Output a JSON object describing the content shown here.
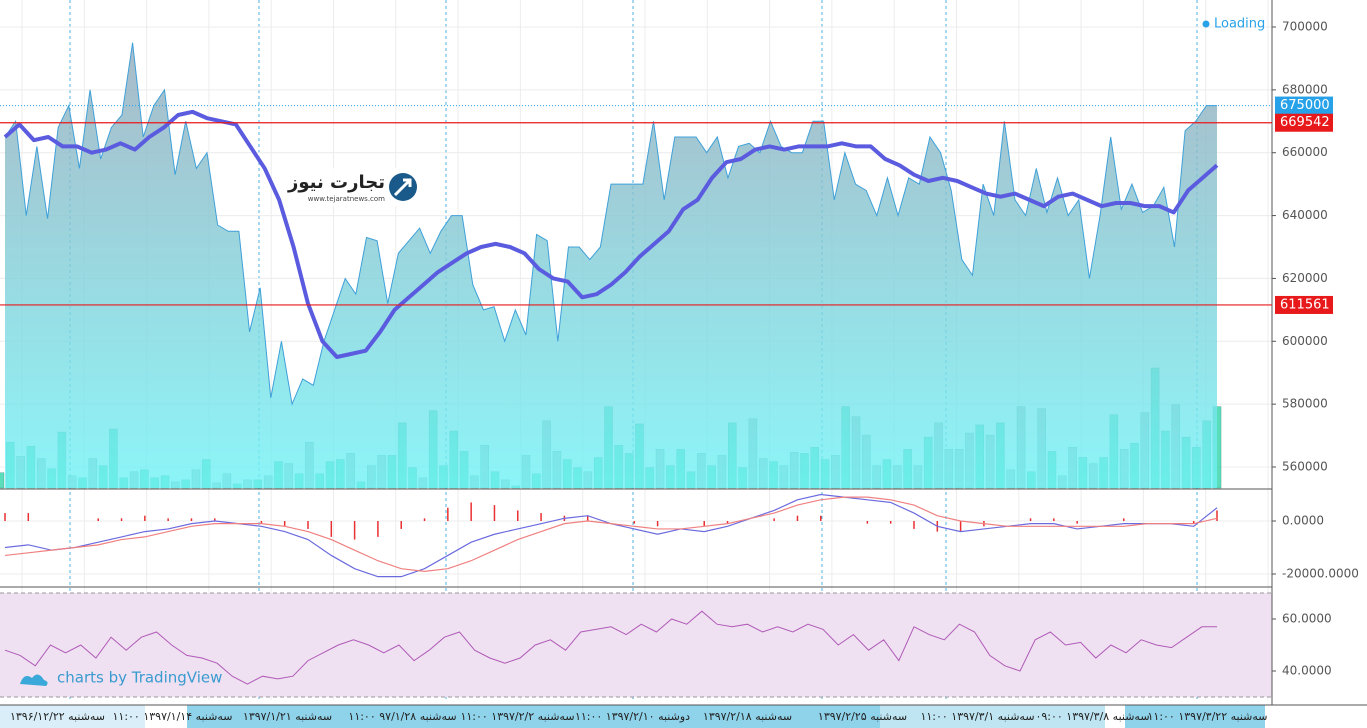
{
  "chart_data": [
    {
      "type": "area",
      "values": [
        665000,
        670000,
        640000,
        662000,
        639000,
        668000,
        675000,
        655000,
        680000,
        658000,
        668000,
        672000,
        695000,
        665000,
        675000,
        680000,
        653000,
        670000,
        655000,
        660000,
        637000,
        635000,
        635000,
        603000,
        617000,
        582000,
        600000,
        580000,
        588000,
        586000,
        600000,
        610000,
        620000,
        615000,
        633000,
        632000,
        612000,
        628000,
        632000,
        636000,
        628000,
        635000,
        640000,
        640000,
        618000,
        610000,
        611000,
        600000,
        610000,
        602000,
        634000,
        632000,
        600000,
        630000,
        630000,
        626000,
        630000,
        650000,
        650000,
        650000,
        650000,
        670000,
        645000,
        665000,
        665000,
        665000,
        660000,
        665000,
        652000,
        662000,
        663000,
        660000,
        670000,
        662000,
        660000,
        660000,
        670000,
        670000,
        645000,
        660000,
        650000,
        648000,
        640000,
        652000,
        640000,
        652000,
        650000,
        665000,
        660000,
        648000,
        626000,
        621000,
        650000,
        640000,
        670000,
        645000,
        640000,
        655000,
        641000,
        652000,
        640000,
        645000,
        620000,
        640000,
        665000,
        642000,
        650000,
        641000,
        643000,
        649000,
        630000,
        667000,
        670000,
        675000,
        675000
      ],
      "color": "#3fa0d8",
      "ma": {
        "color": "#5b5be0",
        "values": [
          665000,
          669000,
          664000,
          665000,
          662000,
          662000,
          660000,
          661000,
          663000,
          661000,
          665000,
          668000,
          672000,
          673000,
          671000,
          670000,
          669000,
          662000,
          655000,
          645000,
          630000,
          612000,
          600000,
          595000,
          596000,
          597000,
          603000,
          610000,
          614000,
          618000,
          622000,
          625000,
          628000,
          630000,
          631000,
          630000,
          628000,
          623000,
          620000,
          619000,
          614000,
          615000,
          618000,
          622000,
          627000,
          631000,
          635000,
          642000,
          645000,
          652000,
          657000,
          658000,
          661000,
          662000,
          661000,
          662000,
          662000,
          662000,
          663000,
          662000,
          662000,
          658000,
          656000,
          653000,
          651000,
          652000,
          651000,
          649000,
          647000,
          646000,
          647000,
          645000,
          643000,
          646000,
          647000,
          645000,
          643000,
          644000,
          644000,
          643000,
          643000,
          641000,
          648000,
          652000,
          656000
        ]
      },
      "volume": {
        "up_color": "#3ed8ae",
        "down_color": "#a3b9b9",
        "values": [
          15,
          45,
          31,
          41,
          29,
          19,
          55,
          12,
          10,
          29,
          22,
          58,
          10,
          16,
          18,
          10,
          12,
          6,
          8,
          18,
          28,
          5,
          14,
          4,
          8,
          8,
          12,
          26,
          24,
          14,
          45,
          14,
          26,
          28,
          34,
          6,
          22,
          32,
          32,
          64,
          20,
          10,
          76,
          22,
          56,
          36,
          12,
          42,
          16,
          8,
          2,
          32,
          14,
          66,
          36,
          28,
          20,
          16,
          30,
          80,
          42,
          34,
          63,
          20,
          38,
          22,
          38,
          16,
          34,
          22,
          32,
          64,
          20,
          68,
          29,
          26,
          22,
          35,
          34,
          40,
          28,
          32,
          80,
          70,
          52,
          22,
          28,
          22,
          38,
          22,
          50,
          64,
          38,
          38,
          54,
          62,
          52,
          64,
          18,
          80,
          16,
          78,
          36,
          12,
          40,
          30,
          24,
          30,
          72,
          38,
          44,
          74,
          118,
          56,
          82,
          50,
          40,
          66,
          80
        ]
      },
      "levels": [
        {
          "value": 675000,
          "color": "#27a2e8"
        },
        {
          "value": 669542,
          "color": "#e8191b"
        },
        {
          "value": 611561,
          "color": "#e8191b"
        }
      ],
      "ylim": [
        553320,
        708590
      ],
      "yticks": [
        560000,
        580000,
        600000,
        620000,
        640000,
        660000,
        680000,
        700000
      ],
      "grid": true
    },
    {
      "type": "macd",
      "series": [
        {
          "name": "MACD",
          "color": "#6b6bdf",
          "values": [
            -10000,
            -9000,
            -11000,
            -10000,
            -8000,
            -6000,
            -4000,
            -3000,
            -1000,
            0,
            -1000,
            -2000,
            -4000,
            -7000,
            -13000,
            -18000,
            -21000,
            -21000,
            -18000,
            -13000,
            -8000,
            -5000,
            -3000,
            -1000,
            1000,
            2000,
            -1000,
            -3000,
            -5000,
            -3000,
            -4000,
            -2000,
            1000,
            4000,
            8000,
            10000,
            9000,
            8000,
            7000,
            3000,
            -2000,
            -4000,
            -3000,
            -2000,
            -1000,
            -1000,
            -3000,
            -2000,
            -1000,
            -1000,
            -1000,
            -2000,
            5000
          ]
        },
        {
          "name": "Signal",
          "color": "#f08080",
          "values": [
            -13000,
            -12000,
            -11000,
            -10000,
            -9000,
            -7000,
            -6000,
            -4000,
            -2000,
            -1000,
            -1000,
            -1000,
            -2000,
            -4000,
            -7000,
            -11000,
            -15000,
            -18000,
            -19000,
            -18000,
            -15000,
            -11000,
            -7000,
            -4000,
            -1000,
            0,
            -1000,
            -2000,
            -3000,
            -3000,
            -2000,
            -1000,
            1000,
            3000,
            6000,
            8000,
            9000,
            9000,
            8000,
            6000,
            2000,
            0,
            -1000,
            -2000,
            -2000,
            -2000,
            -2000,
            -2000,
            -2000,
            -1000,
            -1000,
            -1000,
            1000
          ]
        }
      ],
      "histogram": {
        "color": "#e83030",
        "values": [
          3000,
          3000,
          0,
          0,
          1000,
          1000,
          2000,
          1000,
          1000,
          1000,
          0,
          -1000,
          -2000,
          -3000,
          -6000,
          -7000,
          -6000,
          -3000,
          1000,
          5000,
          7000,
          6000,
          4000,
          3000,
          2000,
          2000,
          0,
          -1000,
          -2000,
          0,
          -2000,
          -1000,
          0,
          1000,
          2000,
          2000,
          0,
          -1000,
          -1000,
          -3000,
          -4000,
          -4000,
          -2000,
          0,
          1000,
          1000,
          -1000,
          0,
          1000,
          0,
          0,
          -1000,
          4000
        ]
      },
      "ylim": [
        -24150,
        11698
      ],
      "yticks": [
        {
          "value": -20000,
          "label": "-20000.0000"
        },
        {
          "value": 0,
          "label": "0.0000"
        }
      ],
      "grid": true
    },
    {
      "type": "rsi",
      "color": "#b05ab8",
      "values": [
        48,
        46,
        42,
        50,
        47,
        50,
        45,
        53,
        48,
        53,
        55,
        50,
        46,
        45,
        43,
        38,
        35,
        38,
        37,
        38,
        44,
        47,
        50,
        52,
        50,
        47,
        50,
        44,
        48,
        53,
        55,
        48,
        45,
        43,
        45,
        50,
        52,
        48,
        55,
        56,
        57,
        54,
        58,
        55,
        60,
        58,
        63,
        58,
        57,
        58,
        55,
        57,
        55,
        58,
        56,
        50,
        54,
        48,
        52,
        44,
        57,
        54,
        52,
        58,
        55,
        46,
        42,
        40,
        52,
        55,
        50,
        51,
        45,
        50,
        47,
        52,
        50,
        49,
        53,
        57,
        57
      ],
      "band": [
        30,
        70
      ],
      "ylim": [
        28.85,
        71.15
      ],
      "yticks": [
        {
          "value": 40,
          "label": "40.0000"
        },
        {
          "value": 60,
          "label": "60.0000"
        }
      ],
      "grid": true
    }
  ],
  "status": "Loading",
  "credit": "charts by TradingView",
  "logo": {
    "name": "تجارت نیوز",
    "site": "www.tejaratnews.com"
  },
  "time_axis": [
    "سه‌شنبه ۱۳۹۶/۱۲/۲۲",
    "سه‌شنبه ۱۳۹۷/۱/۱۴ ۱۱:۰۰",
    "سه‌شنبه ۱۳۹۷/۱/۲۱",
    "سه‌شنبه ۹۷/۱/۲۸ ۱۱:۰۰",
    "سه‌شنبه ۱۳۹۷/۲/۲ ۱۱:۰۰",
    "دوشنبه ۱۳۹۷/۲/۱۰ ۱۱:۰۰",
    "سه‌شنبه ۱۳۹۷/۲/۱۸",
    "سه‌شنبه ۱۳۹۷/۲/۲۵",
    "سه‌شنبه ۱۳۹۷/۳/۱ ۱۱:۰۰",
    "سه‌شنبه ۱۳۹۷/۳/۸ ۰۹:۰۰",
    "سه‌شنبه ۱۳۹۷/۳/۲۲ ۱۱:۰۰"
  ]
}
